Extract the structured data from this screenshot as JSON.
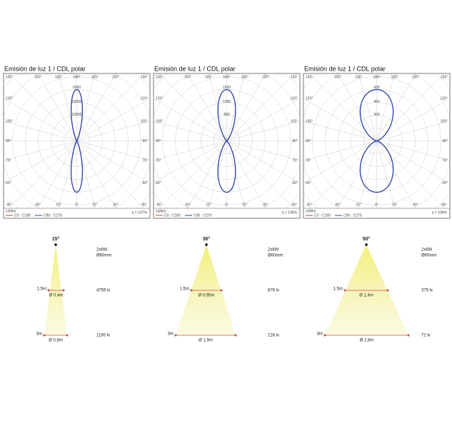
{
  "polar_axis": {
    "angles_top": [
      "135°",
      "150°",
      "165°",
      "180°",
      "165°",
      "150°",
      "135°"
    ],
    "angles_side": [
      "120°",
      "105°",
      "90°",
      "75°",
      "60°"
    ],
    "angles_bottom": [
      "45°",
      "30°",
      "15°",
      "0°",
      "15°",
      "30°",
      "45°"
    ]
  },
  "legend": {
    "unit": "cd/klm",
    "c0": "C0 - C180",
    "c90": "C90 - C270"
  },
  "panels": [
    {
      "title": "Emisión de luz 1 / CDL polar",
      "radial_labels": [
        "5000",
        "10000",
        "15000"
      ],
      "efficiency": "η = 107%"
    },
    {
      "title": "Emisión de luz 1 / CDL polar",
      "radial_labels": [
        "1600",
        "1200",
        "800"
      ],
      "efficiency": "η = 106%"
    },
    {
      "title": "Emisión de luz 1 / CDL polar",
      "radial_labels": [
        "600",
        "450",
        "300"
      ],
      "efficiency": "η = 109%"
    }
  ],
  "beams": [
    {
      "angle": "15°",
      "power": "2x6W",
      "size": "Ø60mm",
      "near_distance": "1.5m",
      "near_diameter": "Ø 0,4m",
      "near_lux": "4759 lx",
      "far_distance": "3m",
      "far_diameter": "Ø 0,8m",
      "far_lux": "1190 lx"
    },
    {
      "angle": "36°",
      "power": "2x6W",
      "size": "Ø60mm",
      "near_distance": "1.5m",
      "near_diameter": "Ø 0,95m",
      "near_lux": "876 lx",
      "far_distance": "3m",
      "far_diameter": "Ø 1,9m",
      "far_lux": "216 lx"
    },
    {
      "angle": "50°",
      "power": "2x6W",
      "size": "Ø60mm",
      "near_distance": "1.5m",
      "near_diameter": "Ø 1,4m",
      "near_lux": "379 lx",
      "far_distance": "3m",
      "far_diameter": "Ø 2,8m",
      "far_lux": "72 lx"
    }
  ]
}
